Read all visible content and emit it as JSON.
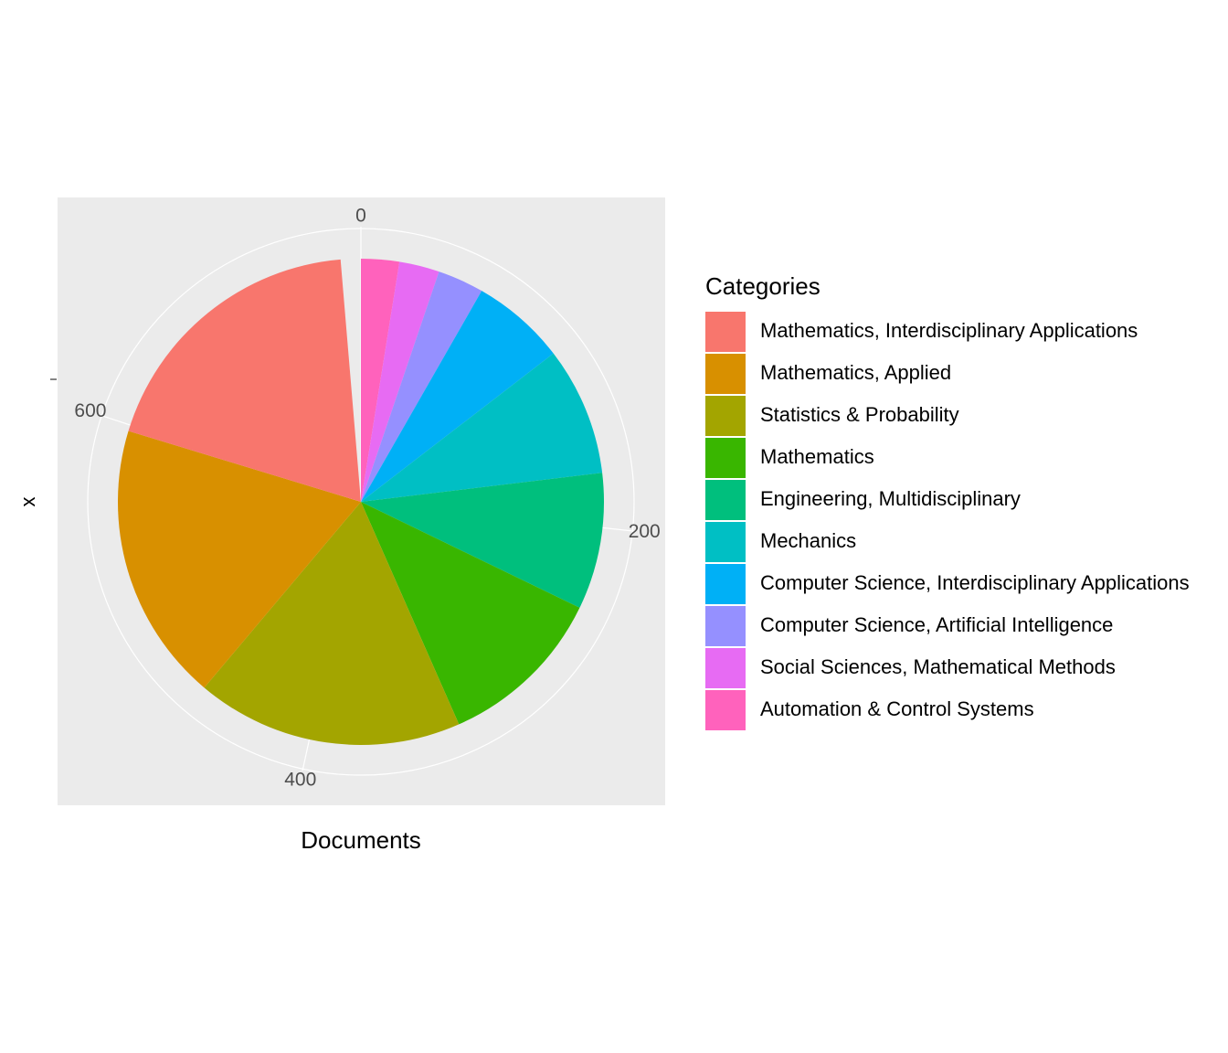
{
  "chart_data": {
    "type": "pie",
    "title": "",
    "xlabel": "Documents",
    "ylabel": "x",
    "radial_axis": {
      "ticks": [
        0,
        200,
        400,
        600
      ],
      "tick_labels": [
        "0",
        "200",
        "400",
        "600"
      ],
      "max": 749
    },
    "grid": true,
    "legend": {
      "title": "Categories",
      "position": "right"
    },
    "series": [
      {
        "name": "Mathematics, Interdisciplinary Applications",
        "value": 142,
        "color": "#F8766D"
      },
      {
        "name": "Mathematics, Applied",
        "value": 139,
        "color": "#D89000"
      },
      {
        "name": "Statistics & Probability",
        "value": 133,
        "color": "#A3A500"
      },
      {
        "name": "Mathematics",
        "value": 84,
        "color": "#39B600"
      },
      {
        "name": "Engineering, Multidisciplinary",
        "value": 68,
        "color": "#00BF7D"
      },
      {
        "name": "Mechanics",
        "value": 64,
        "color": "#00BFC4"
      },
      {
        "name": "Computer Science, Interdisciplinary Applications",
        "value": 47,
        "color": "#00B0F6"
      },
      {
        "name": "Computer Science, Artificial Intelligence",
        "value": 23,
        "color": "#9590FF"
      },
      {
        "name": "Social Sciences, Mathematical Methods",
        "value": 20,
        "color": "#E76BF3"
      },
      {
        "name": "Automation & Control Systems",
        "value": 19,
        "color": "#FF62BC"
      }
    ],
    "colors": {
      "panel_background": "#EBEBEB",
      "grid": "#FFFFFF"
    }
  }
}
